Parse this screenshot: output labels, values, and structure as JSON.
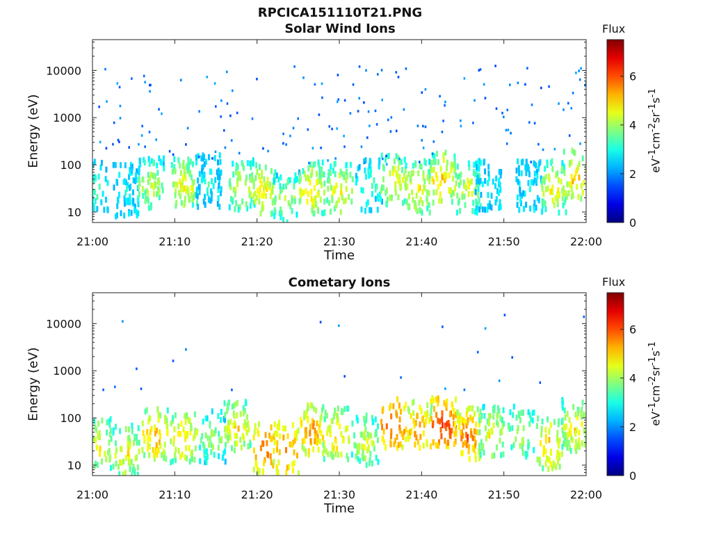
{
  "figure": {
    "title": "RPCICA151110T21.PNG",
    "subtitle": "Solar Wind Ions"
  },
  "chart_data": [
    {
      "type": "heatmap",
      "title": "Solar Wind Ions",
      "xlabel": "Time",
      "ylabel": "Energy (eV)",
      "xticks": [
        "21:00",
        "21:10",
        "21:20",
        "21:30",
        "21:40",
        "21:50",
        "22:00"
      ],
      "xlim_minutes": [
        0,
        60
      ],
      "yscale": "log",
      "yticks": [
        10,
        100,
        1000,
        10000
      ],
      "ylim": [
        6,
        45000
      ],
      "colorbar": {
        "label": "Flux",
        "units": "eV-1cm-2sr-1s-1",
        "range": [
          0,
          7.5
        ],
        "ticks": [
          0,
          2,
          4,
          6
        ]
      },
      "clusters": [
        {
          "t": 0.2,
          "e": 32,
          "flux": 3.6
        },
        {
          "t": 4.0,
          "e": 25,
          "flux": 3.0
        },
        {
          "t": 7.0,
          "e": 35,
          "flux": 4.4
        },
        {
          "t": 11.0,
          "e": 35,
          "flux": 4.8
        },
        {
          "t": 14.0,
          "e": 40,
          "flux": 3.3
        },
        {
          "t": 18.0,
          "e": 32,
          "flux": 4.6
        },
        {
          "t": 20.5,
          "e": 28,
          "flux": 5.0
        },
        {
          "t": 23.5,
          "e": 18,
          "flux": 4.3
        },
        {
          "t": 26.5,
          "e": 28,
          "flux": 5.0
        },
        {
          "t": 30.0,
          "e": 28,
          "flux": 4.8
        },
        {
          "t": 33.5,
          "e": 32,
          "flux": 3.6
        },
        {
          "t": 36.5,
          "e": 45,
          "flux": 4.8
        },
        {
          "t": 39.5,
          "e": 30,
          "flux": 4.9
        },
        {
          "t": 42.5,
          "e": 45,
          "flux": 5.2
        },
        {
          "t": 45.5,
          "e": 30,
          "flux": 4.6
        },
        {
          "t": 48.0,
          "e": 30,
          "flux": 3.3
        },
        {
          "t": 53.0,
          "e": 30,
          "flux": 3.0
        },
        {
          "t": 56.0,
          "e": 30,
          "flux": 4.8
        },
        {
          "t": 58.5,
          "e": 50,
          "flux": 5.2
        }
      ]
    },
    {
      "type": "heatmap",
      "title": "Cometary Ions",
      "xlabel": "Time",
      "ylabel": "Energy (eV)",
      "xticks": [
        "21:00",
        "21:10",
        "21:20",
        "21:30",
        "21:40",
        "21:50",
        "22:00"
      ],
      "xlim_minutes": [
        0,
        60
      ],
      "yscale": "log",
      "yticks": [
        10,
        100,
        1000,
        10000
      ],
      "ylim": [
        6,
        45000
      ],
      "colorbar": {
        "label": "Flux",
        "units": "eV-1cm-2sr-1s-1",
        "range": [
          0,
          7.5
        ],
        "ticks": [
          0,
          2,
          4,
          6
        ]
      },
      "clusters": [
        {
          "t": 0.7,
          "e": 25,
          "flux": 4.8
        },
        {
          "t": 4.0,
          "e": 18,
          "flux": 4.9
        },
        {
          "t": 7.5,
          "e": 40,
          "flux": 5.4
        },
        {
          "t": 11.0,
          "e": 35,
          "flux": 5.2
        },
        {
          "t": 14.5,
          "e": 35,
          "flux": 4.2
        },
        {
          "t": 17.5,
          "e": 60,
          "flux": 5.0
        },
        {
          "t": 21.0,
          "e": 22,
          "flux": 6.0
        },
        {
          "t": 23.5,
          "e": 20,
          "flux": 5.8
        },
        {
          "t": 26.5,
          "e": 50,
          "flux": 5.6
        },
        {
          "t": 29.5,
          "e": 40,
          "flux": 5.2
        },
        {
          "t": 33.0,
          "e": 30,
          "flux": 4.6
        },
        {
          "t": 36.5,
          "e": 70,
          "flux": 6.2
        },
        {
          "t": 39.5,
          "e": 55,
          "flux": 5.6
        },
        {
          "t": 42.5,
          "e": 70,
          "flux": 6.4
        },
        {
          "t": 45.5,
          "e": 40,
          "flux": 5.9
        },
        {
          "t": 48.5,
          "e": 45,
          "flux": 4.8
        },
        {
          "t": 52.0,
          "e": 45,
          "flux": 4.4
        },
        {
          "t": 55.5,
          "e": 25,
          "flux": 5.2
        },
        {
          "t": 58.5,
          "e": 60,
          "flux": 5.0
        }
      ]
    }
  ]
}
